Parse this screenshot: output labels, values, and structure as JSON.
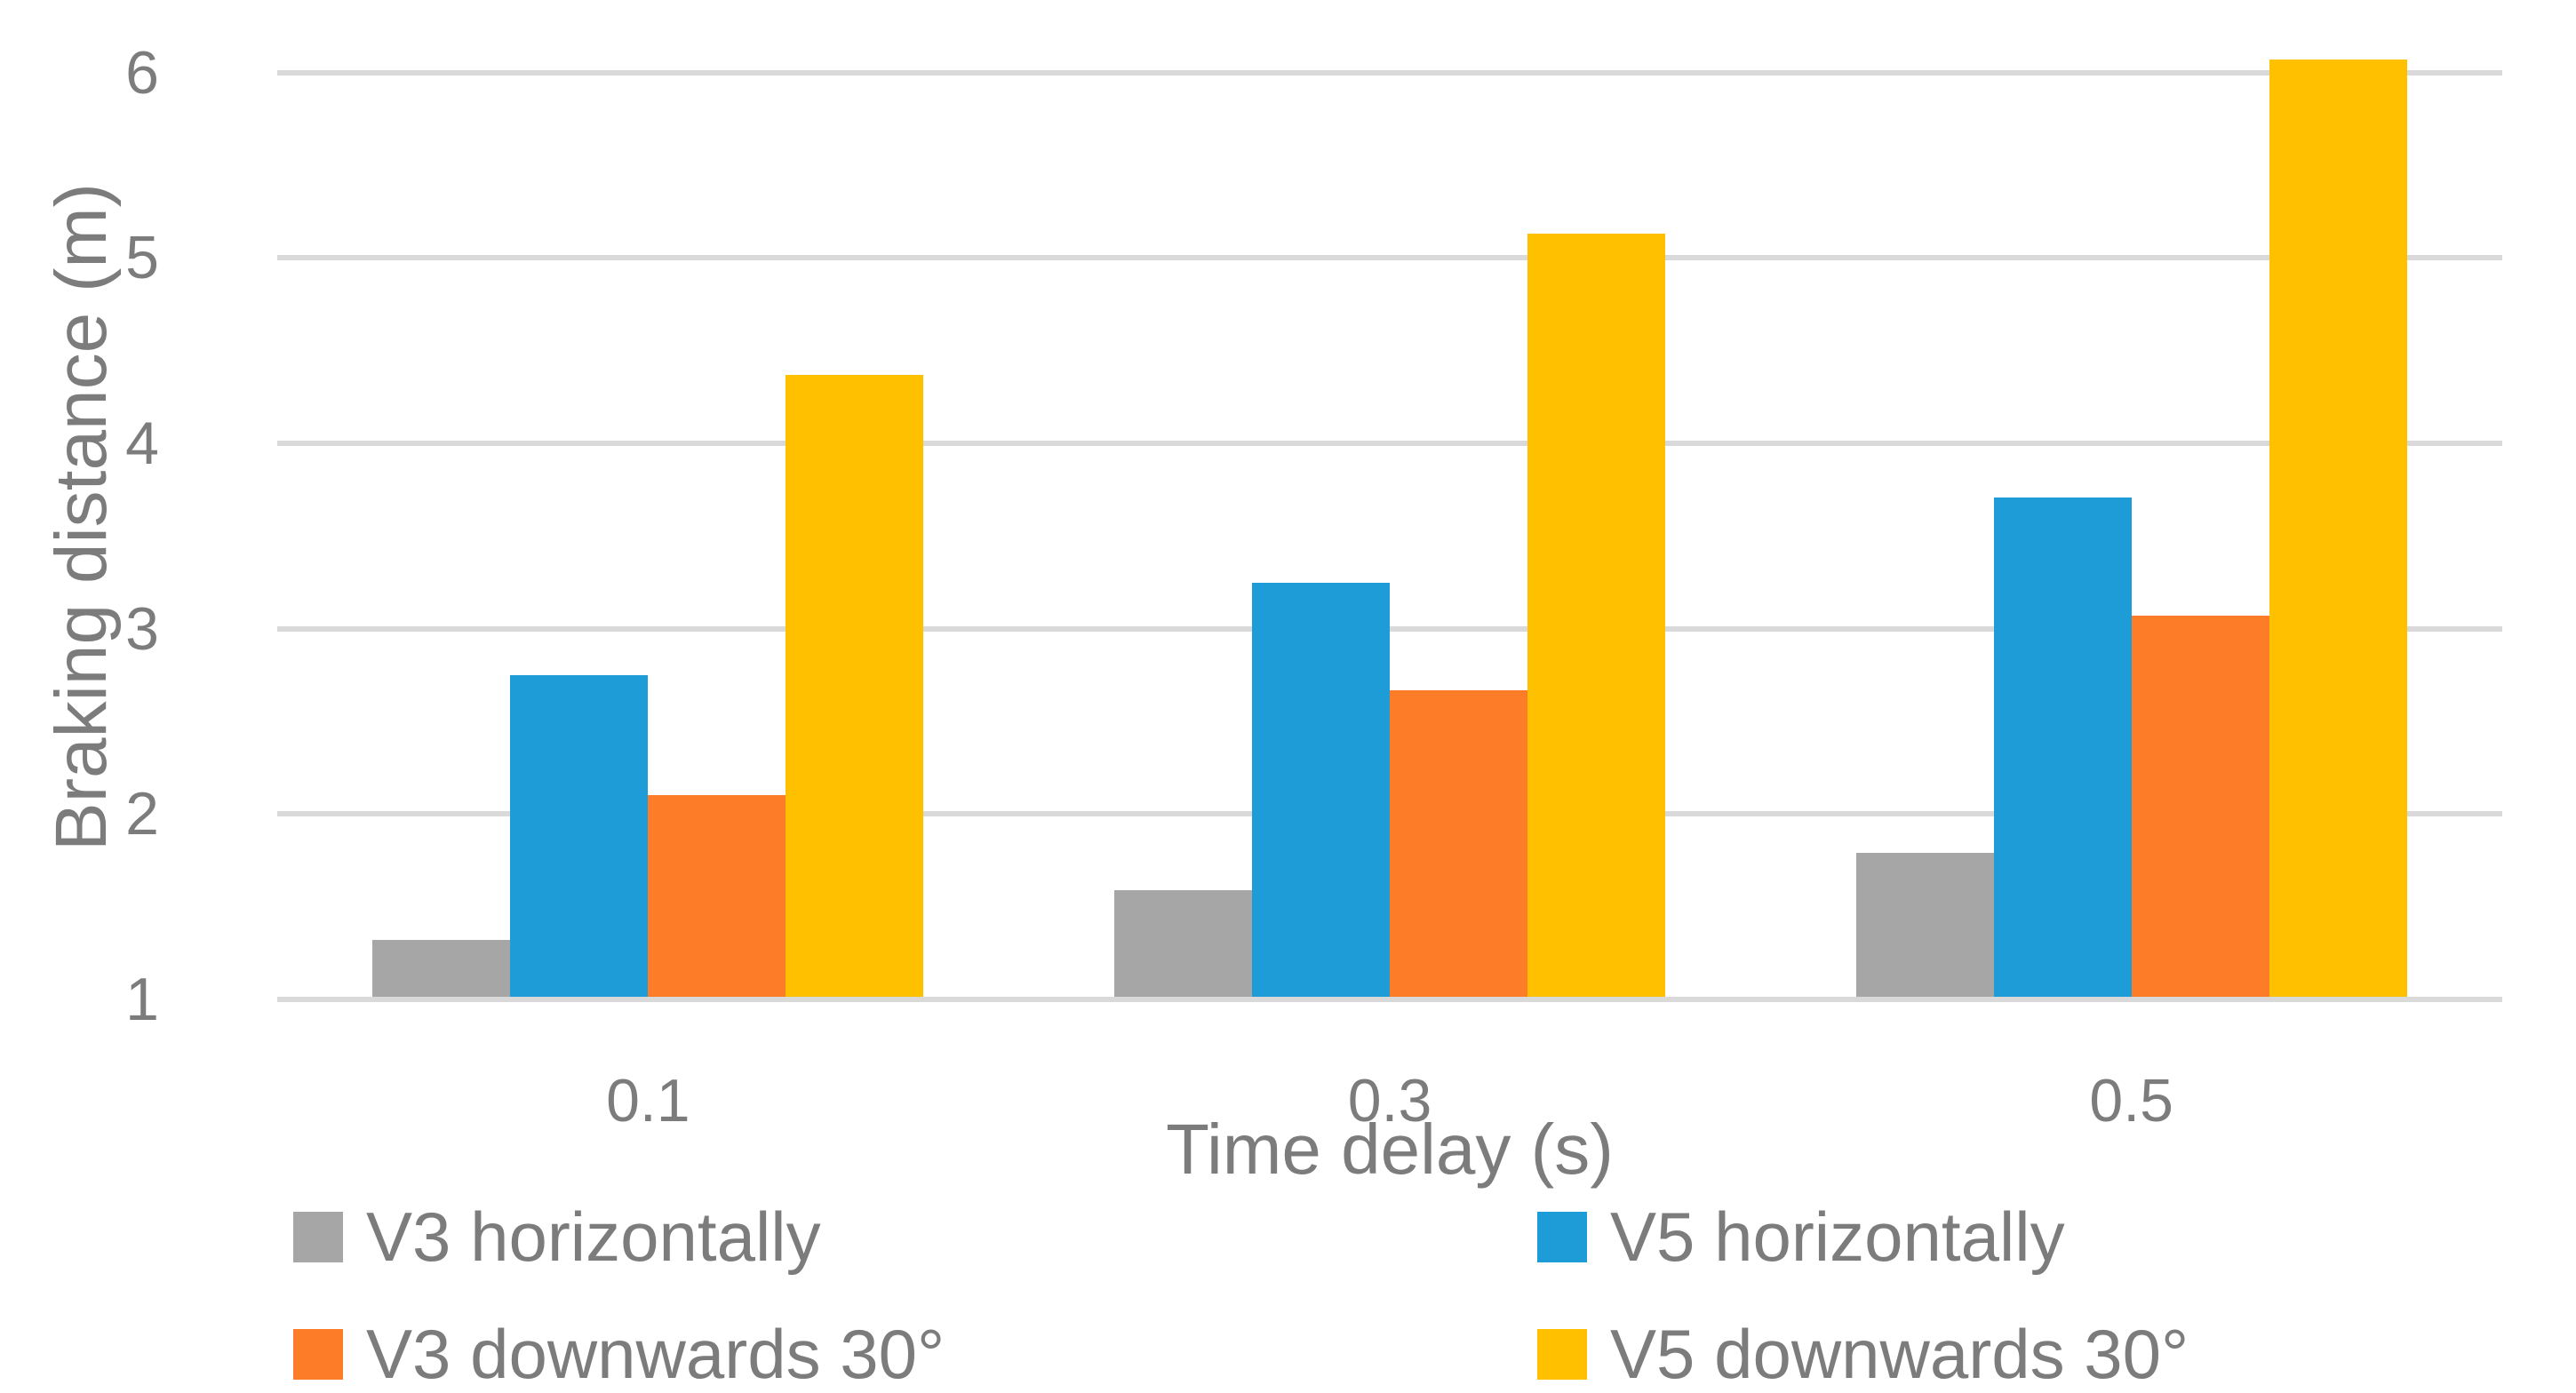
{
  "chart_data": {
    "type": "bar",
    "title": "",
    "categories": [
      "0.1",
      "0.3",
      "0.5"
    ],
    "series": [
      {
        "name": "V3 horizontally",
        "color": "#a6a6a6",
        "values": [
          1.32,
          1.59,
          1.79
        ]
      },
      {
        "name": "V5 horizontally",
        "color": "#1e9cd7",
        "values": [
          2.75,
          3.25,
          3.71
        ]
      },
      {
        "name": "V3 downwards 30°",
        "color": "#fd7c28",
        "values": [
          2.1,
          2.67,
          3.07
        ]
      },
      {
        "name": "V5 downwards 30°",
        "color": "#ffc000",
        "values": [
          4.37,
          5.13,
          6.07
        ]
      }
    ],
    "xlabel": "Time delay (s)",
    "ylabel": "Braking distance (m)",
    "ylim": [
      1,
      6.2
    ],
    "yticks": [
      "1",
      "2",
      "3",
      "4",
      "5",
      "6"
    ],
    "grid": true,
    "legend_position": "bottom-two-columns",
    "style": {
      "background": "#ffffff",
      "gridline_color": "#d9d9d9",
      "text_color": "#7c7c7c"
    }
  }
}
